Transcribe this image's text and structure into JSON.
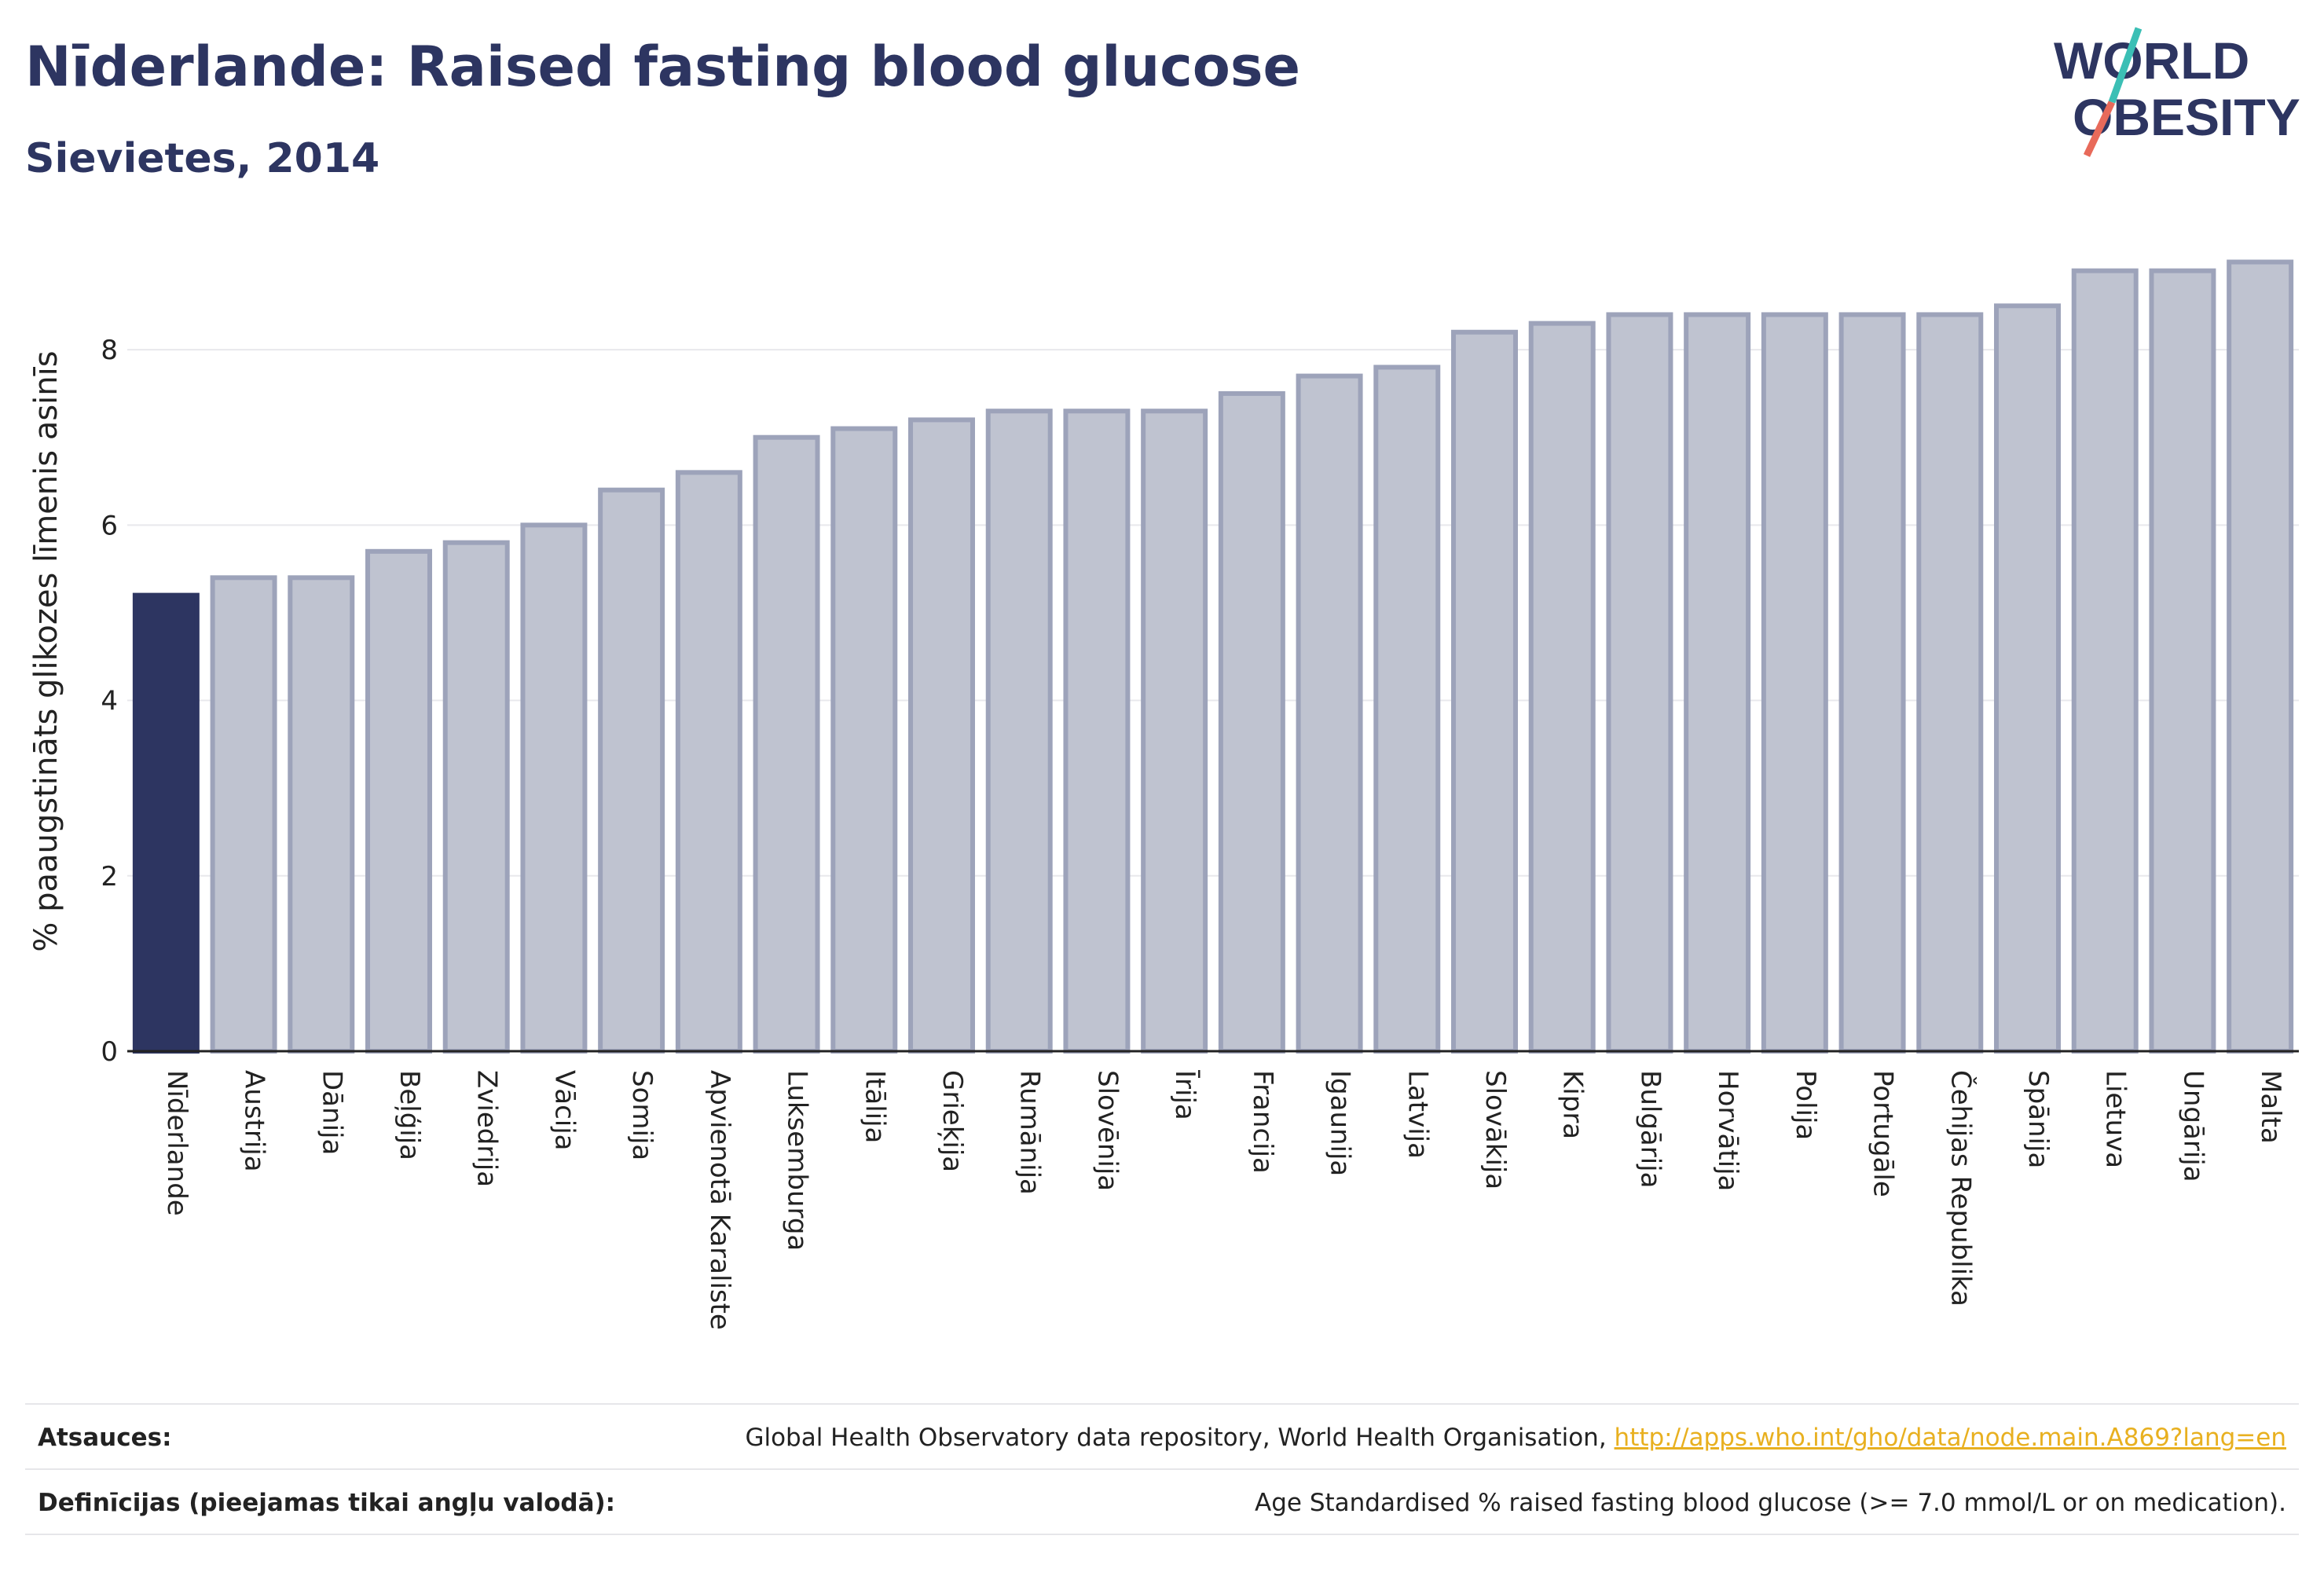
{
  "header": {
    "title": "Nīderlande: Raised fasting blood glucose",
    "subtitle": "Sievietes, 2014"
  },
  "logo": {
    "line1": "WORLD",
    "line2": "OBESITY",
    "accent_teal": "#3bbfb5",
    "accent_coral": "#e86a5a"
  },
  "footer": {
    "sources_label": "Atsauces:",
    "sources_text": "Global Health Observatory data repository, World Health Organisation, ",
    "sources_link": "http://apps.who.int/gho/data/node.main.A869?lang=en",
    "definitions_label": "Definīcijas (pieejamas tikai angļu valodā):",
    "definitions_text": "Age Standardised % raised fasting blood glucose (>= 7.0 mmol/L or on medication)."
  },
  "colors": {
    "highlight": "#2d3561",
    "bar_fill": "#bfc3d0",
    "bar_stroke": "#9da3ba",
    "grid": "#e8e8ec",
    "text": "#222222"
  },
  "chart_data": {
    "type": "bar",
    "ylabel": "% paaugstināts glikozes līmenis asinīs",
    "ylim": [
      0,
      9.3
    ],
    "yticks": [
      0,
      2,
      4,
      6,
      8
    ],
    "grid": true,
    "highlight_category": "Nīderlande",
    "categories": [
      "Nīderlande",
      "Austrija",
      "Dānija",
      "Beļģija",
      "Zviedrija",
      "Vācija",
      "Somija",
      "Apvienotā Karaliste",
      "Luksemburga",
      "Itālija",
      "Grieķija",
      "Rumānija",
      "Slovēnija",
      "Īrija",
      "Francija",
      "Igaunija",
      "Latvija",
      "Slovākija",
      "Kipra",
      "Bulgārija",
      "Horvātija",
      "Polija",
      "Portugāle",
      "Čehijas Republika",
      "Spānija",
      "Lietuva",
      "Ungārija",
      "Malta"
    ],
    "values": [
      5.2,
      5.4,
      5.4,
      5.7,
      5.8,
      6.0,
      6.4,
      6.6,
      7.0,
      7.1,
      7.2,
      7.3,
      7.3,
      7.3,
      7.5,
      7.7,
      7.8,
      8.2,
      8.3,
      8.4,
      8.4,
      8.4,
      8.4,
      8.4,
      8.5,
      8.9,
      8.9,
      9.0
    ]
  }
}
